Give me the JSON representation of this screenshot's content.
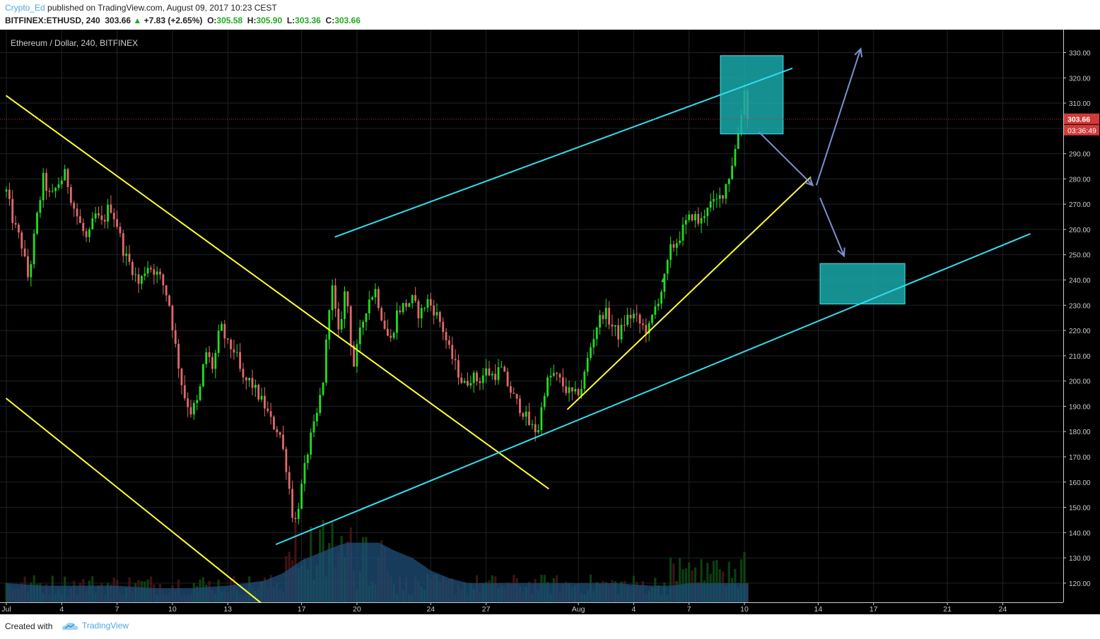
{
  "header": {
    "author": "Crypto_Ed",
    "published_text": " published on TradingView.com, August 09, 2017 10:23 CEST",
    "symbol": "BITFINEX:ETHUSD, 240",
    "last": "303.66",
    "change": "+7.83 (+2.65%)",
    "o_label": "O:",
    "o": "305.58",
    "h_label": "H:",
    "h": "305.90",
    "l_label": "L:",
    "l": "303.36",
    "c_label": "C:",
    "c": "303.66"
  },
  "footer": {
    "created_with": "Created with",
    "brand": "TradingView"
  },
  "colors": {
    "background": "#000000",
    "up": "#22dd22",
    "down": "#e06a6a",
    "trend_yellow": "#ffff33",
    "trend_cyan": "#33ddee",
    "box": "#1aa8aa",
    "arrow": "#7f8fd0",
    "price_tag": "#d23a3a"
  },
  "chart_data": {
    "type": "candlestick",
    "title": "Ethereum / Dollar, 240, BITFINEX",
    "y_ticks": [
      120,
      130,
      140,
      150,
      160,
      170,
      180,
      190,
      200,
      210,
      220,
      230,
      240,
      250,
      260,
      270,
      280,
      290,
      300,
      310,
      320,
      330
    ],
    "y_tick_labels": [
      "120.00",
      "130.00",
      "140.00",
      "150.00",
      "160.00",
      "170.00",
      "180.00",
      "190.00",
      "200.00",
      "210.00",
      "220.00",
      "230.00",
      "240.00",
      "250.00",
      "260.00",
      "270.00",
      "280.00",
      "290.00",
      "300.00",
      "310.00",
      "320.00",
      "330.00"
    ],
    "ylim": [
      112,
      336
    ],
    "x_ticks": [
      {
        "day": 1,
        "label": "Jul"
      },
      {
        "day": 4,
        "label": "4"
      },
      {
        "day": 7,
        "label": "7"
      },
      {
        "day": 10,
        "label": "10"
      },
      {
        "day": 13,
        "label": "13"
      },
      {
        "day": 17,
        "label": "17"
      },
      {
        "day": 20,
        "label": "20"
      },
      {
        "day": 24,
        "label": "24"
      },
      {
        "day": 27,
        "label": "27"
      },
      {
        "day": 32,
        "label": "Aug"
      },
      {
        "day": 35,
        "label": "4"
      },
      {
        "day": 38,
        "label": "7"
      },
      {
        "day": 41,
        "label": "10"
      },
      {
        "day": 45,
        "label": "14"
      },
      {
        "day": 48,
        "label": "17"
      },
      {
        "day": 52,
        "label": "21"
      },
      {
        "day": 55,
        "label": "24"
      }
    ],
    "xlim": [
      0.98,
      58.0
    ],
    "current_price": 303.66,
    "current_price_label": "303.66",
    "countdown_label": "03:36:49",
    "price_anchors": [
      [
        1.0,
        275
      ],
      [
        1.4,
        262
      ],
      [
        1.8,
        255
      ],
      [
        2.2,
        240
      ],
      [
        2.6,
        262
      ],
      [
        3.0,
        280
      ],
      [
        3.4,
        272
      ],
      [
        3.8,
        278
      ],
      [
        4.2,
        282
      ],
      [
        4.6,
        270
      ],
      [
        5.0,
        262
      ],
      [
        5.4,
        255
      ],
      [
        5.8,
        266
      ],
      [
        6.2,
        262
      ],
      [
        6.6,
        270
      ],
      [
        7.0,
        262
      ],
      [
        7.4,
        250
      ],
      [
        7.8,
        245
      ],
      [
        8.2,
        238
      ],
      [
        8.6,
        246
      ],
      [
        9.0,
        244
      ],
      [
        9.4,
        240
      ],
      [
        9.8,
        232
      ],
      [
        10.2,
        212
      ],
      [
        10.6,
        195
      ],
      [
        11.0,
        188
      ],
      [
        11.4,
        192
      ],
      [
        11.8,
        212
      ],
      [
        12.2,
        205
      ],
      [
        12.6,
        222
      ],
      [
        13.0,
        214
      ],
      [
        13.4,
        212
      ],
      [
        13.8,
        200
      ],
      [
        14.2,
        200
      ],
      [
        14.6,
        195
      ],
      [
        15.0,
        190
      ],
      [
        15.4,
        183
      ],
      [
        15.8,
        180
      ],
      [
        16.2,
        165
      ],
      [
        16.6,
        142
      ],
      [
        17.0,
        158
      ],
      [
        17.4,
        175
      ],
      [
        17.8,
        185
      ],
      [
        18.2,
        202
      ],
      [
        18.6,
        240
      ],
      [
        19.0,
        218
      ],
      [
        19.4,
        238
      ],
      [
        19.8,
        205
      ],
      [
        20.2,
        220
      ],
      [
        20.6,
        232
      ],
      [
        21.0,
        236
      ],
      [
        21.4,
        224
      ],
      [
        21.8,
        215
      ],
      [
        22.2,
        228
      ],
      [
        22.6,
        230
      ],
      [
        23.0,
        232
      ],
      [
        23.4,
        226
      ],
      [
        23.8,
        232
      ],
      [
        24.2,
        228
      ],
      [
        24.6,
        222
      ],
      [
        25.0,
        212
      ],
      [
        25.4,
        205
      ],
      [
        25.8,
        198
      ],
      [
        26.2,
        202
      ],
      [
        26.6,
        200
      ],
      [
        27.0,
        204
      ],
      [
        27.4,
        202
      ],
      [
        27.8,
        205
      ],
      [
        28.2,
        198
      ],
      [
        28.6,
        192
      ],
      [
        29.0,
        188
      ],
      [
        29.4,
        182
      ],
      [
        29.8,
        180
      ],
      [
        30.2,
        198
      ],
      [
        30.6,
        203
      ],
      [
        31.0,
        200
      ],
      [
        31.4,
        196
      ],
      [
        31.8,
        194
      ],
      [
        32.2,
        198
      ],
      [
        32.6,
        212
      ],
      [
        33.0,
        222
      ],
      [
        33.4,
        228
      ],
      [
        33.8,
        222
      ],
      [
        34.2,
        218
      ],
      [
        34.6,
        225
      ],
      [
        35.0,
        226
      ],
      [
        35.4,
        222
      ],
      [
        35.8,
        220
      ],
      [
        36.2,
        230
      ],
      [
        36.6,
        238
      ],
      [
        37.0,
        252
      ],
      [
        37.4,
        256
      ],
      [
        37.8,
        262
      ],
      [
        38.2,
        266
      ],
      [
        38.6,
        262
      ],
      [
        39.0,
        270
      ],
      [
        39.4,
        270
      ],
      [
        39.8,
        274
      ],
      [
        40.2,
        282
      ],
      [
        40.6,
        295
      ],
      [
        41.0,
        315
      ],
      [
        41.1,
        305
      ],
      [
        41.2,
        303.66
      ]
    ],
    "volume_area": [
      [
        1,
        120
      ],
      [
        3,
        119
      ],
      [
        5,
        119
      ],
      [
        7,
        119
      ],
      [
        9,
        118
      ],
      [
        11,
        118
      ],
      [
        13,
        119
      ],
      [
        14,
        120
      ],
      [
        15,
        121
      ],
      [
        16,
        124
      ],
      [
        17,
        129
      ],
      [
        18,
        132
      ],
      [
        19,
        135
      ],
      [
        19.5,
        136
      ],
      [
        20.5,
        136
      ],
      [
        21.2,
        136
      ],
      [
        22,
        133
      ],
      [
        23,
        130
      ],
      [
        24,
        125
      ],
      [
        25,
        122
      ],
      [
        26,
        120
      ],
      [
        28,
        120
      ],
      [
        30,
        120
      ],
      [
        32,
        120
      ],
      [
        34,
        120
      ],
      [
        36,
        119
      ],
      [
        37,
        119
      ],
      [
        38,
        120
      ],
      [
        40,
        120
      ],
      [
        41.2,
        120
      ]
    ],
    "trendlines": {
      "yellow": [
        {
          "from": [
            0.98,
            313
          ],
          "to": [
            30.4,
            157.3
          ]
        },
        {
          "from": [
            0.98,
            193.2
          ],
          "to": [
            15.0,
            111.0
          ]
        },
        {
          "from": [
            31.4,
            188.7
          ],
          "to": [
            44.6,
            280.8
          ]
        }
      ],
      "cyan": [
        {
          "from": [
            18.8,
            257
          ],
          "to": [
            43.6,
            323.8
          ]
        },
        {
          "from": [
            15.6,
            135.3
          ],
          "to": [
            56.5,
            258.3
          ]
        }
      ]
    },
    "zones": [
      {
        "x0": 39.7,
        "x1": 43.1,
        "y0": 297.8,
        "y1": 328.8
      },
      {
        "x0": 45.1,
        "x1": 49.7,
        "y0": 230.5,
        "y1": 246.5
      }
    ],
    "arrows": [
      {
        "from": [
          41.8,
          298.5
        ],
        "to": [
          44.7,
          277.5
        ]
      },
      {
        "from": [
          44.9,
          277.5
        ],
        "to": [
          47.3,
          331.5
        ]
      },
      {
        "from": [
          45.1,
          272.5
        ],
        "to": [
          46.4,
          249.5
        ]
      }
    ]
  }
}
